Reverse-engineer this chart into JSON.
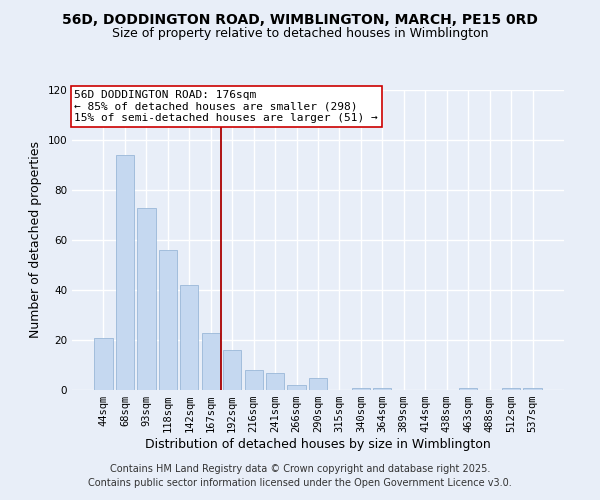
{
  "title": "56D, DODDINGTON ROAD, WIMBLINGTON, MARCH, PE15 0RD",
  "subtitle": "Size of property relative to detached houses in Wimblington",
  "xlabel": "Distribution of detached houses by size in Wimblington",
  "ylabel": "Number of detached properties",
  "bar_color": "#c5d8f0",
  "bar_edge_color": "#9ab8d8",
  "categories": [
    "44sqm",
    "68sqm",
    "93sqm",
    "118sqm",
    "142sqm",
    "167sqm",
    "192sqm",
    "216sqm",
    "241sqm",
    "266sqm",
    "290sqm",
    "315sqm",
    "340sqm",
    "364sqm",
    "389sqm",
    "414sqm",
    "438sqm",
    "463sqm",
    "488sqm",
    "512sqm",
    "537sqm"
  ],
  "values": [
    21,
    94,
    73,
    56,
    42,
    23,
    16,
    8,
    7,
    2,
    5,
    0,
    1,
    1,
    0,
    0,
    0,
    1,
    0,
    1,
    1
  ],
  "ylim": [
    0,
    120
  ],
  "yticks": [
    0,
    20,
    40,
    60,
    80,
    100,
    120
  ],
  "vline_x_index": 5.5,
  "vline_color": "#aa0000",
  "annotation_text": "56D DODDINGTON ROAD: 176sqm\n← 85% of detached houses are smaller (298)\n15% of semi-detached houses are larger (51) →",
  "annotation_box_color": "#ffffff",
  "annotation_box_edge_color": "#cc0000",
  "footer1": "Contains HM Land Registry data © Crown copyright and database right 2025.",
  "footer2": "Contains public sector information licensed under the Open Government Licence v3.0.",
  "background_color": "#e8eef8",
  "grid_color": "#ffffff",
  "title_fontsize": 10,
  "subtitle_fontsize": 9,
  "axis_label_fontsize": 9,
  "tick_fontsize": 7.5,
  "annotation_fontsize": 8,
  "footer_fontsize": 7
}
